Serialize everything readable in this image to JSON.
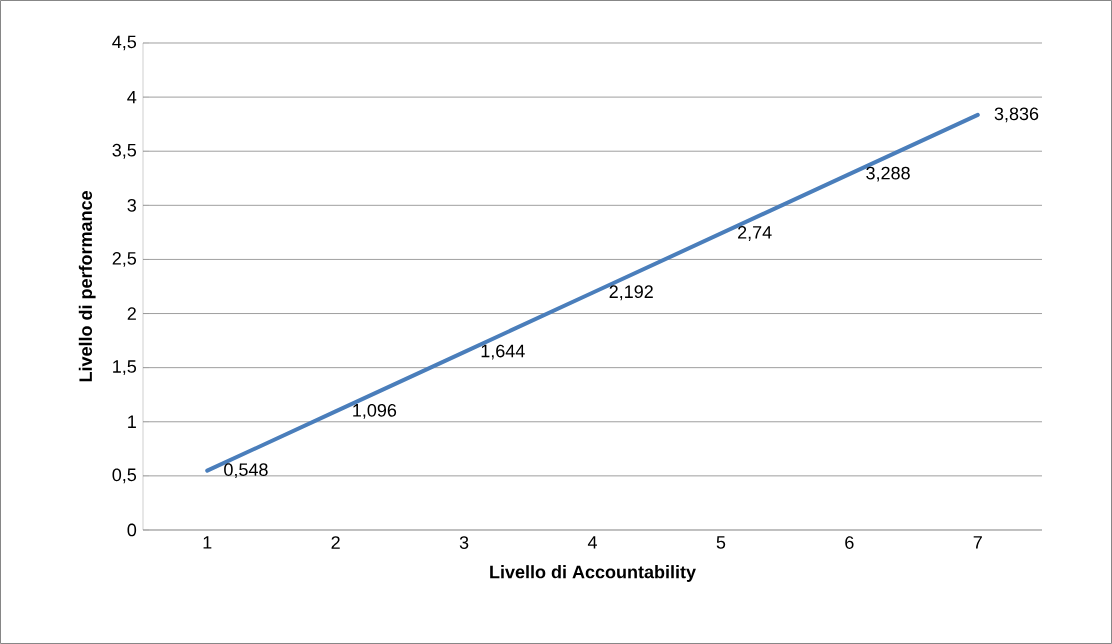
{
  "chart_data": {
    "type": "line",
    "xlabel": "Livello di Accountability",
    "ylabel": "Livello di performance",
    "categories": [
      "1",
      "2",
      "3",
      "4",
      "5",
      "6",
      "7"
    ],
    "values": [
      0.548,
      1.096,
      1.644,
      2.192,
      2.74,
      3.288,
      3.836
    ],
    "value_labels": [
      "0,548",
      "1,096",
      "1,644",
      "2,192",
      "2,74",
      "3,288",
      "3,836"
    ],
    "color": "#4a7ebb",
    "ylim": [
      0,
      4.5
    ],
    "yticks": [
      0,
      {
        "value": 0.5,
        "label": "0,5"
      },
      1,
      {
        "value": 1.5,
        "label": "1,5"
      },
      2,
      {
        "value": 2.5,
        "label": "2,5"
      },
      3,
      {
        "value": 3.5,
        "label": "3,5"
      },
      4,
      {
        "value": 4.5,
        "label": "4,5"
      }
    ],
    "grid": "y",
    "marker": "none",
    "line_style": "solid"
  }
}
